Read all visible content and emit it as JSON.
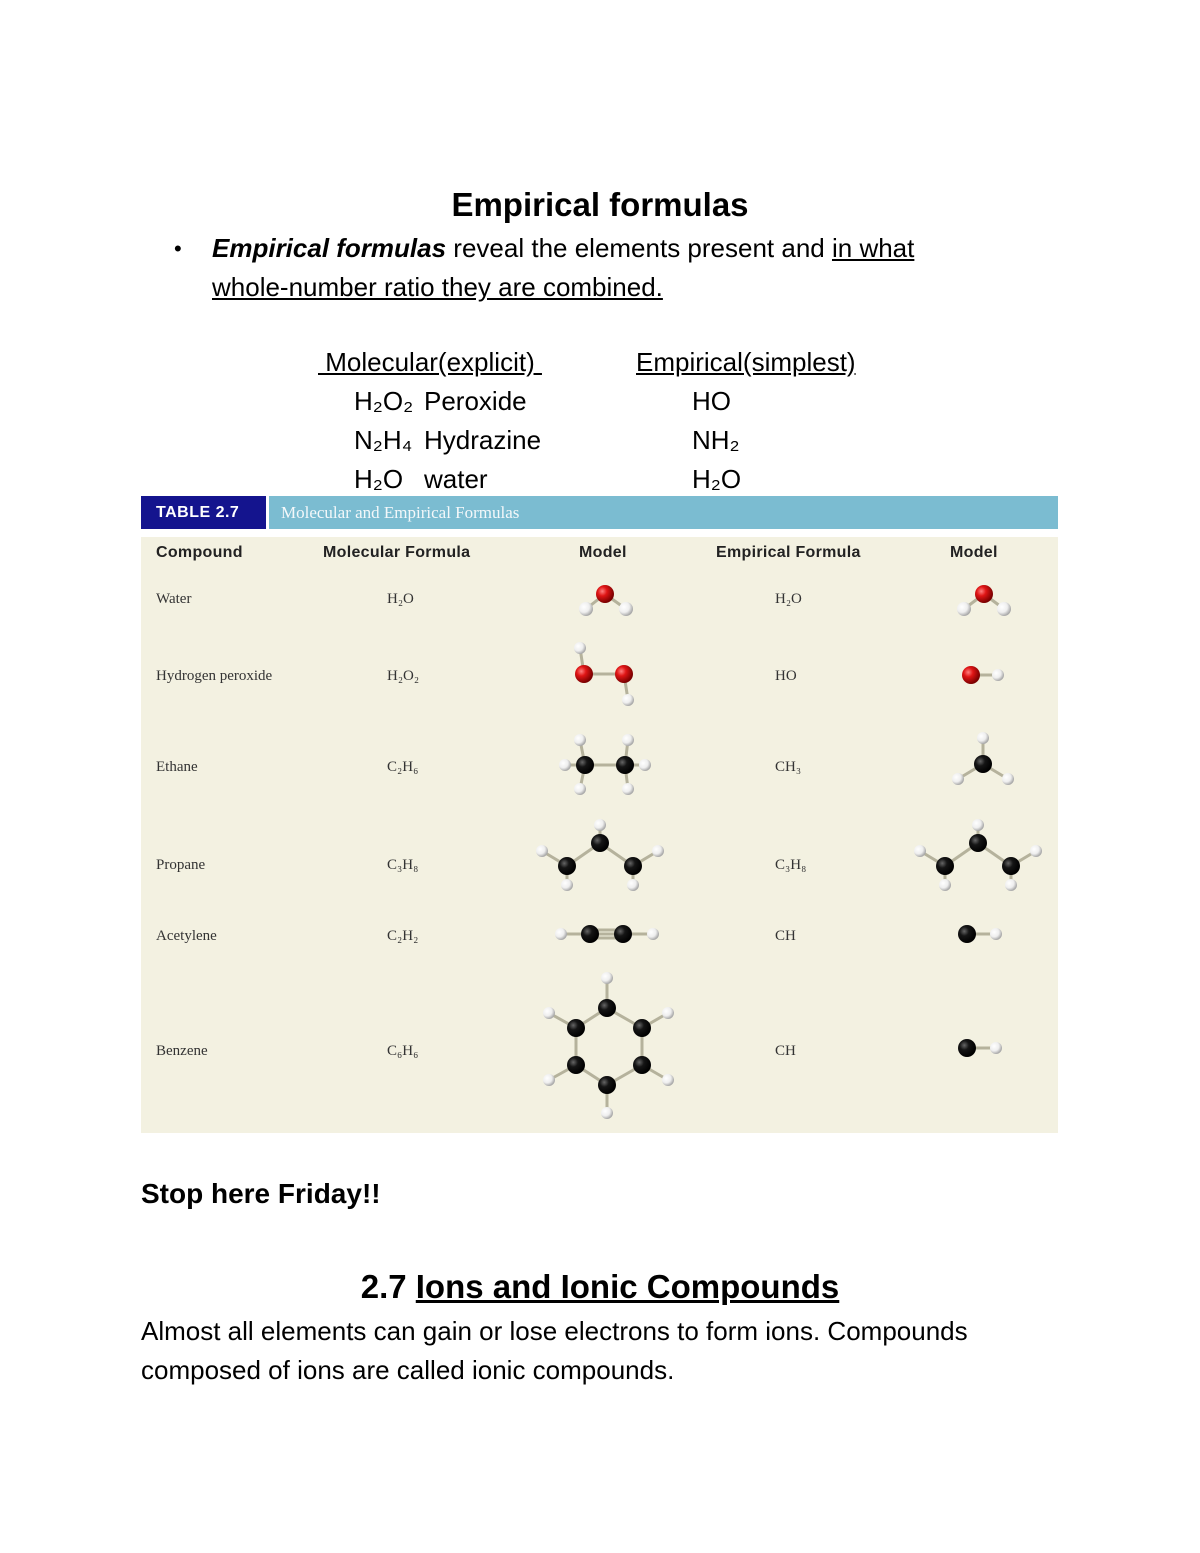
{
  "title": "Empirical formulas",
  "bullet": {
    "term": "Empirical formulas",
    "text": " reveal the elements present and ",
    "underlined_line1": "in what ",
    "underlined_line2": "whole-number ratio they are combined."
  },
  "comparison": {
    "headers": {
      "molecular": " Molecular(explicit) ",
      "empirical": "Empirical(simplest)"
    },
    "rows": [
      {
        "formula": "H₂O₂",
        "name": "Peroxide",
        "empirical": "HO"
      },
      {
        "formula": "N₂H₄",
        "name": "Hydrazine",
        "empirical": "NH₂"
      },
      {
        "formula": "H₂O",
        "name": "water",
        "empirical": "H₂O"
      }
    ]
  },
  "table": {
    "label": "TABLE 2.7",
    "caption": "Molecular and Empirical Formulas",
    "columns": [
      "Compound",
      "Molecular Formula",
      "Model",
      "Empirical Formula",
      "Model"
    ],
    "rows": [
      {
        "compound": "Water",
        "molecular": "H₂O",
        "empirical": "H₂O"
      },
      {
        "compound": "Hydrogen peroxide",
        "molecular": "H₂O₂",
        "empirical": "HO"
      },
      {
        "compound": "Ethane",
        "molecular": "C₂H₆",
        "empirical": "CH₃"
      },
      {
        "compound": "Propane",
        "molecular": "C₃H₈",
        "empirical": "C₃H₈"
      },
      {
        "compound": "Acetylene",
        "molecular": "C₂H₂",
        "empirical": "CH"
      },
      {
        "compound": "Benzene",
        "molecular": "C₆H₆",
        "empirical": "CH"
      }
    ],
    "colors": {
      "label_bg": "#14148e",
      "caption_bg": "#7bbcd1",
      "body_bg": "#f3f1e1",
      "oxygen": "#d81818",
      "carbon": "#111111",
      "hydrogen": "#eeeeee"
    }
  },
  "stop_note": "Stop here Friday!!",
  "section": {
    "number": "2.7 ",
    "title": "Ions and Ionic Compounds"
  },
  "paragraph": {
    "line1": "Almost all elements can gain or lose electrons to form ions. Compounds",
    "line2": "composed of ions are called ionic compounds."
  }
}
